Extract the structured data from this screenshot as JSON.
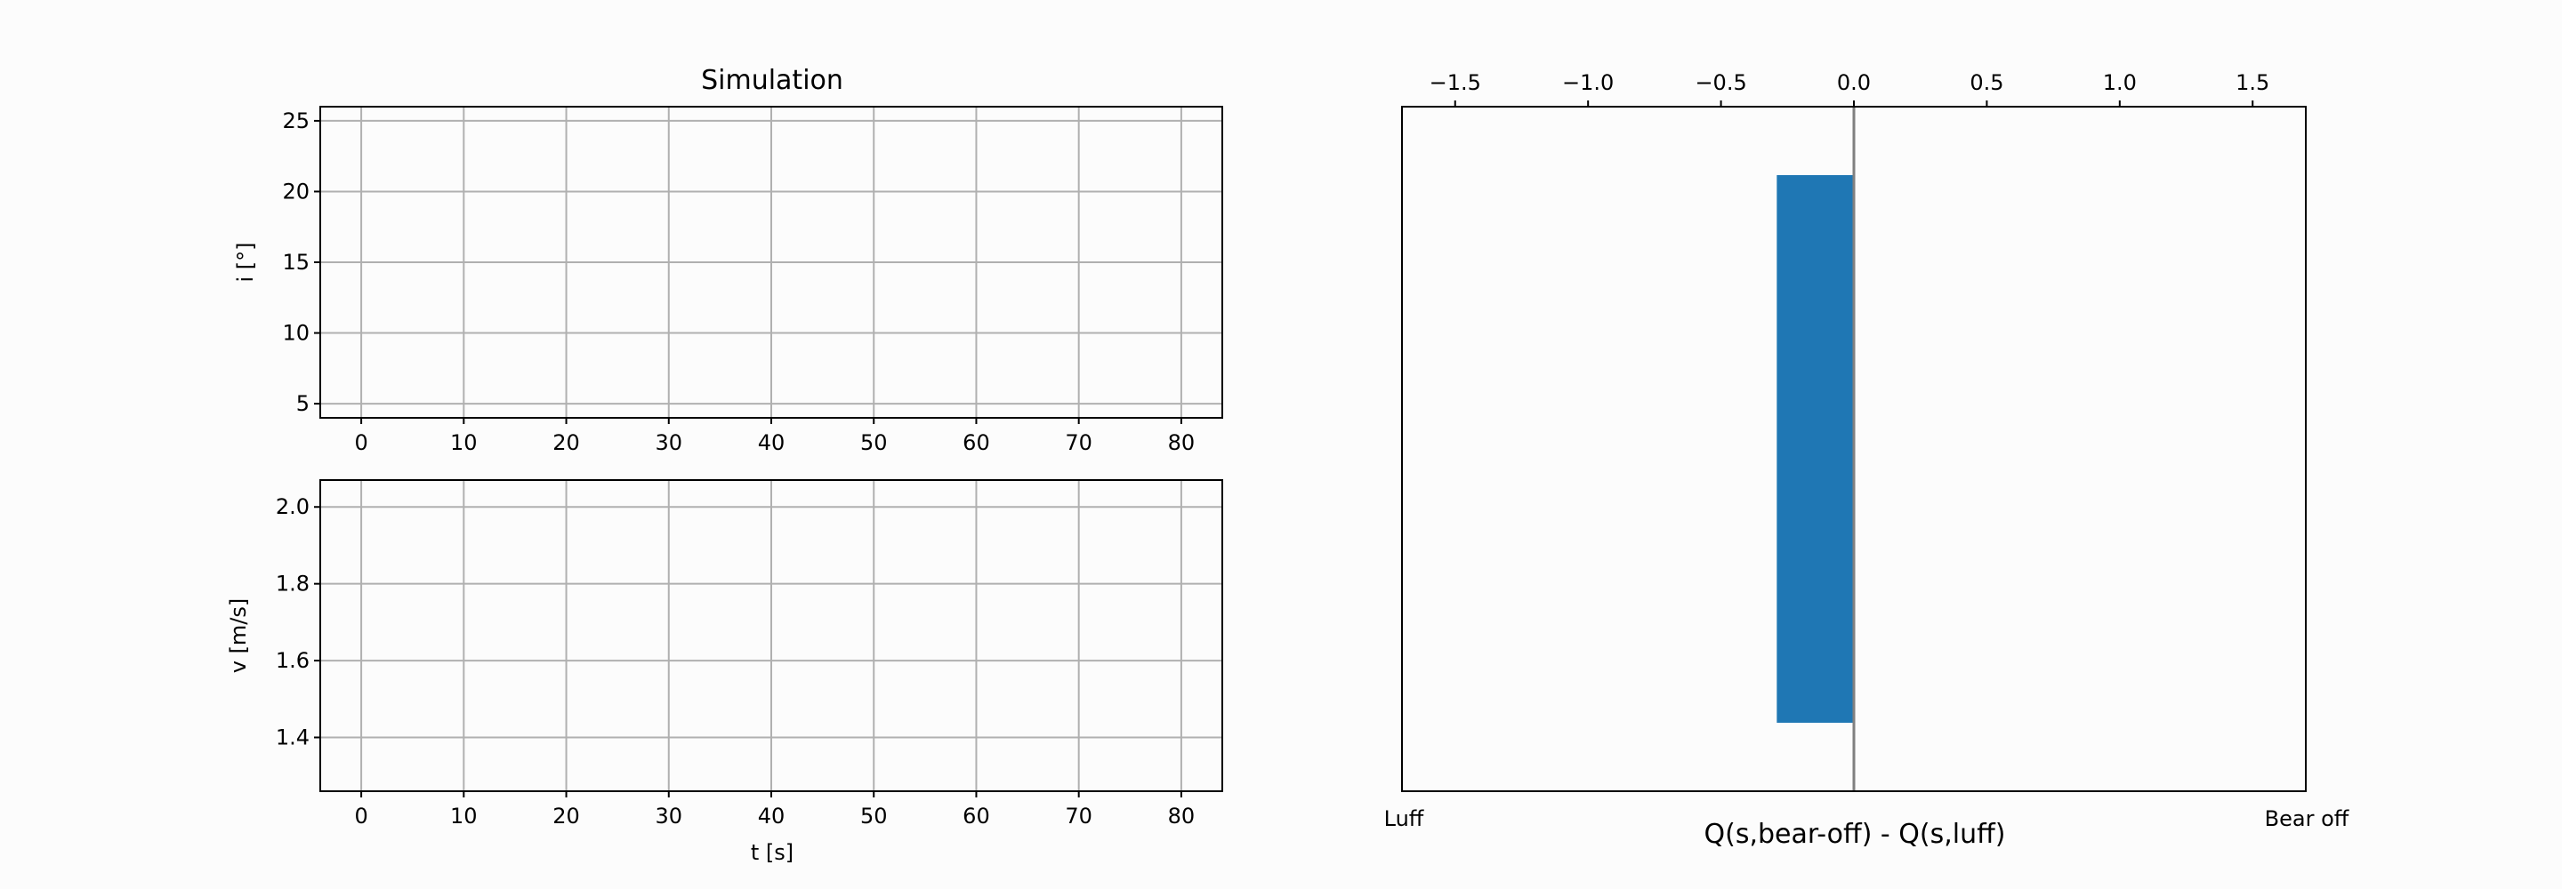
{
  "figure": {
    "background": "#fcfcfc"
  },
  "chart_data": [
    {
      "type": "line",
      "title": "Simulation",
      "xlabel": "",
      "ylabel": "i [°]",
      "xlim": [
        -4,
        84
      ],
      "ylim": [
        4,
        26
      ],
      "xticks": [
        0,
        10,
        20,
        30,
        40,
        50,
        60,
        70,
        80
      ],
      "yticks": [
        5,
        10,
        15,
        20,
        25
      ],
      "grid": true,
      "series": []
    },
    {
      "type": "line",
      "title": "",
      "xlabel": "t [s]",
      "ylabel": "v [m/s]",
      "xlim": [
        -4,
        84
      ],
      "ylim": [
        1.26,
        2.07
      ],
      "xticks": [
        0,
        10,
        20,
        30,
        40,
        50,
        60,
        70,
        80
      ],
      "yticks": [
        1.4,
        1.6,
        1.8,
        2.0
      ],
      "ytick_labels": [
        "1.4",
        "1.6",
        "1.8",
        "2.0"
      ],
      "grid": true,
      "series": []
    },
    {
      "type": "bar",
      "orientation": "horizontal",
      "xlabel": "Q(s,bear-off) - Q(s,luff)",
      "xlim": [
        -1.7,
        1.7
      ],
      "top_ticks": [
        -1.5,
        -1.0,
        -0.5,
        0.0,
        0.5,
        1.0,
        1.5
      ],
      "top_tick_labels": [
        "−1.5",
        "−1.0",
        "−0.5",
        "0.0",
        "0.5",
        "1.0",
        "1.5"
      ],
      "left_end_label": "Luff",
      "right_end_label": "Bear off",
      "bar_value": -0.29,
      "bar_color": "#1f77b4",
      "zero_line_color": "#808080"
    }
  ]
}
